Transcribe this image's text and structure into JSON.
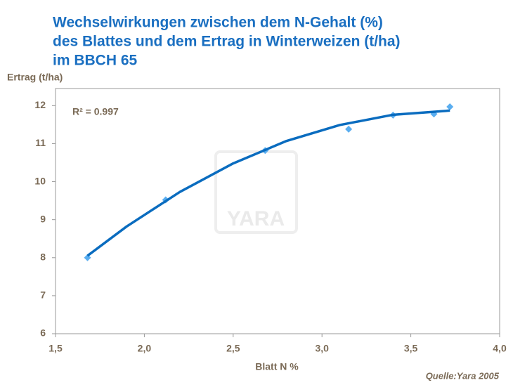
{
  "chart_data": {
    "type": "scatter",
    "title_lines": [
      "Wechselwirkungen zwischen dem N-Gehalt (%)",
      "des Blattes und dem Ertrag in Winterweizen (t/ha)",
      "im BBCH 65"
    ],
    "y_label": "Ertrag (t/ha)",
    "x_label": "Blatt N %",
    "annotation": "R² = 0.997",
    "source": "Quelle:Yara  2005",
    "watermark": "YARA",
    "xlim": [
      1.5,
      4.0
    ],
    "ylim": [
      6,
      12.45
    ],
    "xticks": [
      {
        "value": 1.5,
        "label": "1,5"
      },
      {
        "value": 2.0,
        "label": "2,0"
      },
      {
        "value": 2.5,
        "label": "2,5"
      },
      {
        "value": 3.0,
        "label": "3,0"
      },
      {
        "value": 3.5,
        "label": "3,5"
      },
      {
        "value": 4.0,
        "label": "4,0"
      }
    ],
    "yticks": [
      6,
      7,
      8,
      9,
      10,
      11,
      12
    ],
    "points": {
      "color": "#5aaef0",
      "x": [
        1.68,
        2.12,
        2.68,
        3.15,
        3.4,
        3.63,
        3.72
      ],
      "values": [
        8.0,
        9.52,
        10.82,
        11.38,
        11.75,
        11.78,
        11.97
      ]
    },
    "trend": {
      "color": "#0a6cbf",
      "x": [
        1.68,
        1.9,
        2.2,
        2.5,
        2.8,
        3.1,
        3.4,
        3.72
      ],
      "values": [
        8.05,
        8.82,
        9.73,
        10.48,
        11.07,
        11.49,
        11.76,
        11.87
      ]
    }
  }
}
